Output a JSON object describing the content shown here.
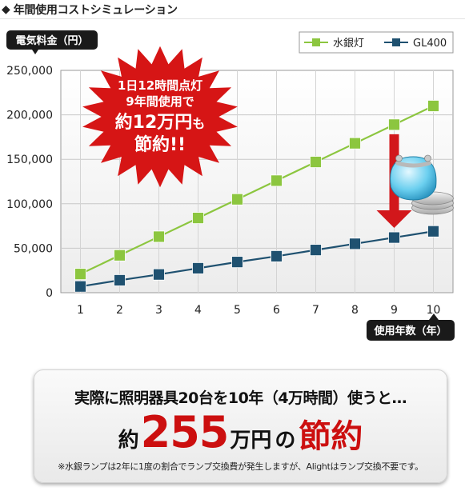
{
  "header": {
    "title": "年間使用コストシミュレーション"
  },
  "chart_data": {
    "type": "line",
    "ylabel": "電気料金（円）",
    "xlabel": "使用年数（年）",
    "categories": [
      "1",
      "2",
      "3",
      "4",
      "5",
      "6",
      "7",
      "8",
      "9",
      "10"
    ],
    "y_ticks": [
      "0",
      "50,000",
      "100,000",
      "150,000",
      "200,000",
      "250,000"
    ],
    "ylim": [
      0,
      250000
    ],
    "grid": true,
    "legend_position": "top-right",
    "series": [
      {
        "name": "水銀灯",
        "color": "#8cc63f",
        "values": [
          21000,
          42000,
          63000,
          84000,
          105000,
          126000,
          147000,
          168000,
          189000,
          210000
        ]
      },
      {
        "name": "GL400",
        "color": "#1f5170",
        "values": [
          7000,
          14000,
          20500,
          27500,
          34500,
          41000,
          48000,
          55000,
          62000,
          69000
        ]
      }
    ],
    "callout": {
      "line1": "1日12時間点灯",
      "line2": "9年間使用で",
      "line3a": "約12万円",
      "line3b": "も",
      "line4": "節約!!"
    }
  },
  "colors": {
    "mercury": "#8cc63f",
    "gl400": "#1f5170",
    "accent_red": "#cc0f0f",
    "burst_red": "#d61515",
    "arrow_red": "#d2171b",
    "label_bg": "#1a1a1a"
  },
  "summary": {
    "line1": "実際に照明器具20台を10年（4万時間）使うと…",
    "prefix": "約",
    "amount": "255",
    "unit": "万円",
    "particle": "の",
    "emphasis": "節約",
    "note": "※水銀ランプは2年に1度の割合でランプ交換費が発生しますが、Alightはランプ交換不要です。"
  }
}
